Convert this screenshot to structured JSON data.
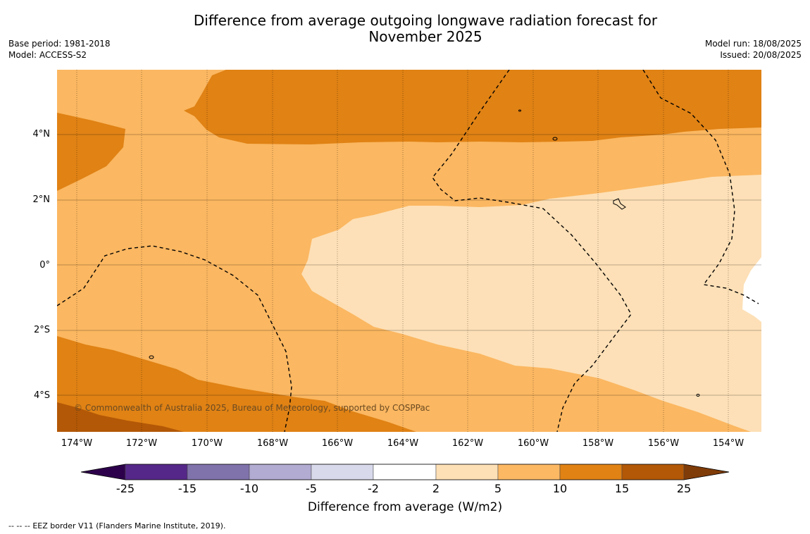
{
  "header": {
    "title_line1": "Difference from average outgoing longwave radiation forecast for",
    "title_line2": "November 2025",
    "base_period": "Base period: 1981-2018",
    "model": "Model: ACCESS-S2",
    "model_run": "Model run: 18/08/2025",
    "issued": "Issued: 20/08/2025"
  },
  "map": {
    "lat_labels": [
      "4°N",
      "2°N",
      "0°",
      "2°S",
      "4°S"
    ],
    "lon_labels": [
      "174°W",
      "172°W",
      "170°W",
      "168°W",
      "166°W",
      "164°W",
      "162°W",
      "160°W",
      "158°W",
      "156°W",
      "154°W"
    ],
    "copyright": "© Commonwealth of Australia 2025, Bureau of Meteorology, supported by COSPPac",
    "colors": {
      "band_2_5": "#fde0b7",
      "band_5_10": "#fbb761",
      "band_10_15": "#e08214",
      "band_15_25": "#b35806",
      "white": "#ffffff"
    }
  },
  "colorbar": {
    "title": "Difference from average (W/m2)",
    "labels": [
      "-25",
      "-15",
      "-10",
      "-5",
      "-2",
      "2",
      "5",
      "10",
      "15",
      "25"
    ],
    "colors": [
      "#2d004b",
      "#542788",
      "#8073ac",
      "#b2abd2",
      "#d8daeb",
      "#ffffff",
      "#fee0b6",
      "#fdb863",
      "#e08214",
      "#b35806",
      "#7f3b08"
    ]
  },
  "footer": {
    "legend_symbol": "--  --  --",
    "legend_text": "EEZ border V11 (Flanders Marine Institute, 2019)."
  }
}
